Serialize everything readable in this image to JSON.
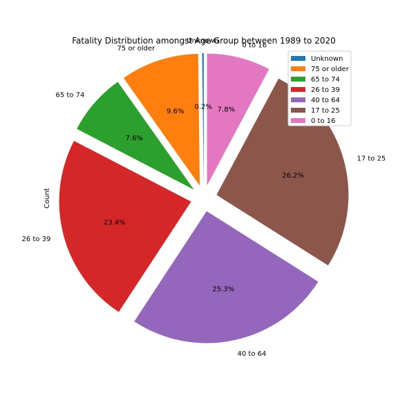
{
  "chart_data": {
    "type": "pie",
    "title": "Fatality Distribution amongst Age Group between 1989 to 2020",
    "ylabel": "Count",
    "start_angle_deg": 90,
    "direction": "counterclockwise",
    "legend_position": "upper-right",
    "slices": [
      {
        "label": "Unknown",
        "value": 0.2,
        "pct_label": "0.2%",
        "color": "#1f77b4"
      },
      {
        "label": "75 or older",
        "value": 9.6,
        "pct_label": "9.6%",
        "color": "#ff7f0e"
      },
      {
        "label": "65 to 74",
        "value": 7.6,
        "pct_label": "7.6%",
        "color": "#2ca02c"
      },
      {
        "label": "26 to 39",
        "value": 23.4,
        "pct_label": "23.4%",
        "color": "#d62728"
      },
      {
        "label": "40 to 64",
        "value": 25.3,
        "pct_label": "25.3%",
        "color": "#9467bd"
      },
      {
        "label": "17 to 25",
        "value": 26.2,
        "pct_label": "26.2%",
        "color": "#8c564b"
      },
      {
        "label": "0 to 16",
        "value": 7.8,
        "pct_label": "7.8%",
        "color": "#e377c2"
      }
    ],
    "legend": [
      "Unknown",
      "75 or older",
      "65 to 74",
      "26 to 39",
      "40 to 64",
      "17 to 25",
      "0 to 16"
    ]
  }
}
